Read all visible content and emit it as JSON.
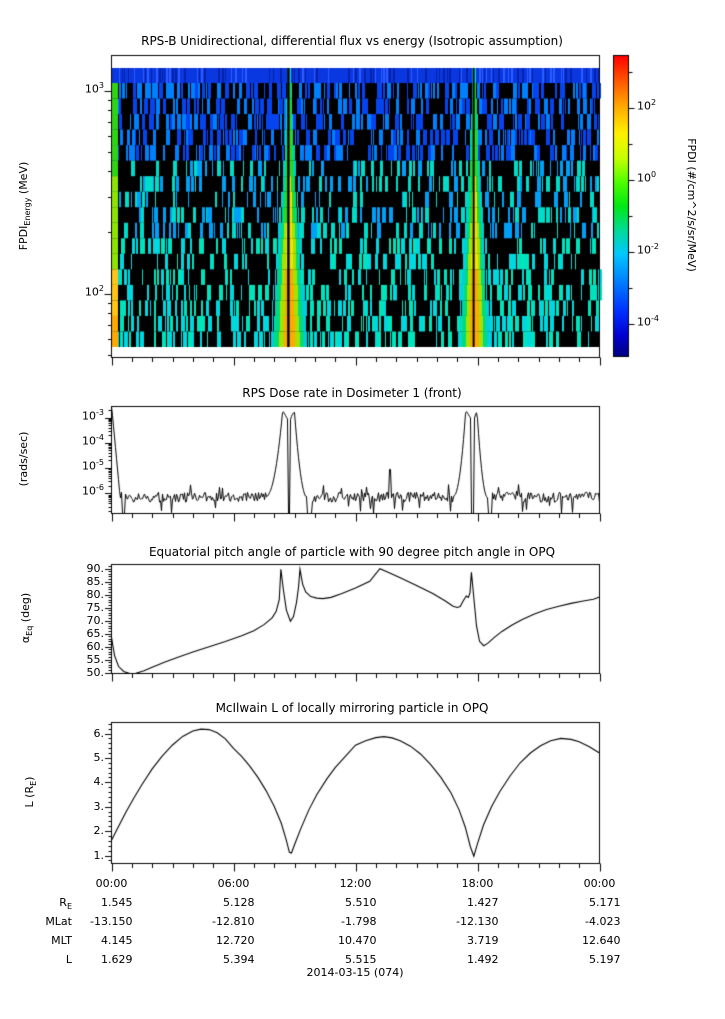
{
  "page": {
    "bg": "#ffffff",
    "date_label": "2014-03-15 (074)"
  },
  "panels": {
    "spectrogram": {
      "title": "RPS-B  Unidirectional, differential flux vs energy (Isotropic assumption)",
      "ylabel": {
        "main": "FPDI",
        "sub": "Energy",
        "rest": " (MeV)"
      },
      "yticks": [
        {
          "exp": "3",
          "v": 1000
        },
        {
          "exp": "2",
          "v": 100
        }
      ],
      "colorbar": {
        "label": "FPDI (#/cm^2/s/sr/MeV)",
        "ticks": [
          {
            "exp": "2",
            "v": 2
          },
          {
            "exp": "0",
            "v": 0
          },
          {
            "exp": "-2",
            "v": -2
          },
          {
            "exp": "-4",
            "v": -4
          }
        ],
        "minor_tick_exps": [
          3,
          1,
          -1,
          -3
        ],
        "gradient": [
          [
            0.0,
            "#ff0000"
          ],
          [
            0.08,
            "#ff5200"
          ],
          [
            0.17,
            "#ffaa00"
          ],
          [
            0.26,
            "#fff200"
          ],
          [
            0.34,
            "#c8ff00"
          ],
          [
            0.42,
            "#50ff00"
          ],
          [
            0.5,
            "#00e814"
          ],
          [
            0.58,
            "#00dc96"
          ],
          [
            0.66,
            "#00c8ff"
          ],
          [
            0.75,
            "#0080ff"
          ],
          [
            0.85,
            "#0030ff"
          ],
          [
            0.93,
            "#0000d2"
          ],
          [
            1.0,
            "#000082"
          ]
        ]
      }
    },
    "dose": {
      "title": "RPS  Dose rate in Dosimeter 1 (front)",
      "ylabel": "(rads/sec)",
      "yticks": [
        {
          "exp": "-3",
          "v": -3
        },
        {
          "exp": "-4",
          "v": -4
        },
        {
          "exp": "-5",
          "v": -5
        },
        {
          "exp": "-6",
          "v": -6
        }
      ]
    },
    "pitch": {
      "title": "Equatorial pitch angle of particle with 90 degree pitch angle in OPQ",
      "ylabel": {
        "main": "α",
        "sub": "Eq",
        "rest": " (deg)"
      },
      "yticks": [
        {
          "label": "90.",
          "v": 90
        },
        {
          "label": "85.",
          "v": 85
        },
        {
          "label": "80.",
          "v": 80
        },
        {
          "label": "75.",
          "v": 75
        },
        {
          "label": "70.",
          "v": 70
        },
        {
          "label": "65.",
          "v": 65
        },
        {
          "label": "60.",
          "v": 60
        },
        {
          "label": "55.",
          "v": 55
        },
        {
          "label": "50.",
          "v": 50
        }
      ]
    },
    "lshell": {
      "title": "McIlwain L of locally mirroring particle in OPQ",
      "ylabel": {
        "main": "L (R",
        "sub": "E",
        "rest": ")"
      },
      "yticks": [
        {
          "label": "6.",
          "v": 6
        },
        {
          "label": "5.",
          "v": 5
        },
        {
          "label": "4.",
          "v": 4
        },
        {
          "label": "3.",
          "v": 3
        },
        {
          "label": "2.",
          "v": 2
        },
        {
          "label": "1.",
          "v": 1
        }
      ]
    }
  },
  "xaxis": {
    "time_labels": [
      "00:00",
      "06:00",
      "12:00",
      "18:00",
      "00:00"
    ],
    "hours": [
      0,
      6,
      12,
      18,
      24
    ]
  },
  "table": {
    "row_labels": [
      {
        "main": "R",
        "sub": "E"
      },
      {
        "main": "MLat",
        "sub": ""
      },
      {
        "main": "MLT",
        "sub": ""
      },
      {
        "main": "L",
        "sub": ""
      }
    ],
    "columns": [
      "00:00",
      "06:00",
      "12:00",
      "18:00",
      "00:00"
    ],
    "rows": [
      [
        "1.545",
        "5.128",
        "5.510",
        "1.427",
        "5.171"
      ],
      [
        "-13.150",
        "-12.810",
        "-1.798",
        "-12.130",
        "-4.023"
      ],
      [
        "4.145",
        "12.720",
        "10.470",
        "3.719",
        "12.640"
      ],
      [
        "1.629",
        "5.394",
        "5.515",
        "1.492",
        "5.197"
      ]
    ]
  },
  "chart_data": [
    {
      "type": "heatmap",
      "title": "RPS-B  Unidirectional, differential flux vs energy (Isotropic assumption)",
      "xlabel": "UT on 2014-03-15, hours 0-24",
      "ylabel": "FPDI_Energy (MeV)",
      "y_scale": "log",
      "y_range_mev": [
        50,
        1500
      ],
      "color_label": "FPDI (#/cm^2/s/sr/MeV)",
      "color_scale": "log",
      "color_range": [
        1e-05,
        3000
      ],
      "n_energy_rows": 18,
      "top_row": {
        "color": "#0a38e0",
        "dark": "#0522a8",
        "light": "#2b5cff",
        "band_color": "#00d8e8"
      },
      "perigee_bands": [
        {
          "center_h": 8.75,
          "bottom_halfwidth_h": 0.82,
          "gap_h": [
            8.64,
            8.76
          ]
        },
        {
          "center_h": 17.85,
          "bottom_halfwidth_h": 0.7,
          "gap_h": [
            17.76,
            17.84
          ]
        }
      ],
      "left_band": {
        "start_h": 0.0,
        "width_h": 0.28,
        "top_color": "#2fd414",
        "mid_color": "#8ce400",
        "low_color": "#ffc414",
        "bottom_color": "#ffaa00"
      },
      "band_colors": {
        "core_low": "#ffaa00",
        "core_mid": "#f2e400",
        "core_high": "#40dc14",
        "inner_low": "#a8e000",
        "inner": "#2cd81c",
        "edge": "#00dc7c",
        "fringe": "#00ccdc"
      },
      "stripe_colors": {
        "high": [
          "#0644f0",
          "#0080ff"
        ],
        "mid": [
          "#00a0f8",
          "#00dcc8"
        ],
        "low": [
          "#00e4bc",
          "#00d8e0"
        ]
      },
      "stripe_density": {
        "high": 0.45,
        "mid": 0.33,
        "low": 0.3,
        "bottom": 0.38
      },
      "rng_seed": 20140315
    },
    {
      "type": "line",
      "title": "RPS  Dose rate in Dosimeter 1 (front)",
      "ylabel": "(rads/sec)",
      "y_scale": "log",
      "y_range": [
        1.6e-07,
        0.0028
      ],
      "x_range_hours": [
        0,
        24
      ],
      "baseline_log10": -6.15,
      "noise_amp_log10": 0.2,
      "start_spike": {
        "log10_at_t0": -2.5,
        "end_h": 0.45
      },
      "peaks": [
        {
          "rise_start": 7.55,
          "apex1": 8.42,
          "gap_start": 8.66,
          "gap_end": 8.78,
          "apex2_end": 9.0,
          "fall_end": 9.6,
          "apex_log10": -2.72
        },
        {
          "rise_start": 16.78,
          "apex1": 17.42,
          "gap_start": 17.7,
          "gap_end": 17.82,
          "apex2_end": 17.98,
          "fall_end": 18.48,
          "apex_log10": -2.72
        }
      ],
      "dropouts_h": [
        [
          0.5,
          0.64
        ],
        [
          9.62,
          9.85
        ],
        [
          18.52,
          18.72
        ]
      ],
      "spikes": [
        {
          "t": 12.55,
          "log10": -5.75
        },
        {
          "t": 13.7,
          "log10": -5.05
        }
      ],
      "rng_seed": 77
    },
    {
      "type": "line",
      "title": "Equatorial pitch angle of particle with 90 degree pitch angle in OPQ",
      "ylabel": "alpha_Eq (deg)",
      "y_scale": "linear",
      "y_range": [
        49.0,
        91.5
      ],
      "x_range_hours": [
        0,
        24
      ],
      "points": [
        [
          0,
          63.5
        ],
        [
          0.15,
          56.5
        ],
        [
          0.35,
          52.3
        ],
        [
          0.6,
          50.4
        ],
        [
          0.9,
          49.6
        ],
        [
          1.2,
          49.7
        ],
        [
          1.6,
          50.7
        ],
        [
          2,
          52
        ],
        [
          2.6,
          53.9
        ],
        [
          3.2,
          55.7
        ],
        [
          4,
          57.9
        ],
        [
          4.8,
          59.9
        ],
        [
          5.6,
          61.9
        ],
        [
          6.4,
          64.1
        ],
        [
          7,
          66.1
        ],
        [
          7.5,
          68.4
        ],
        [
          7.9,
          71
        ],
        [
          8.1,
          73.5
        ],
        [
          8.25,
          78
        ],
        [
          8.33,
          89.7
        ],
        [
          8.45,
          82
        ],
        [
          8.6,
          74
        ],
        [
          8.8,
          69.7
        ],
        [
          8.95,
          71.5
        ],
        [
          9.1,
          77
        ],
        [
          9.2,
          83
        ],
        [
          9.27,
          89.7
        ],
        [
          9.4,
          84
        ],
        [
          9.55,
          81
        ],
        [
          9.8,
          79.2
        ],
        [
          10.1,
          78.6
        ],
        [
          10.4,
          78.4
        ],
        [
          10.8,
          78.9
        ],
        [
          11.3,
          80.3
        ],
        [
          12,
          82.5
        ],
        [
          12.7,
          85.1
        ],
        [
          13.2,
          89.9
        ],
        [
          13.6,
          88.6
        ],
        [
          14.2,
          86.4
        ],
        [
          15,
          83.5
        ],
        [
          15.8,
          80.4
        ],
        [
          16.4,
          77.6
        ],
        [
          16.8,
          75.5
        ],
        [
          17,
          75
        ],
        [
          17.15,
          75.4
        ],
        [
          17.3,
          77.6
        ],
        [
          17.45,
          79.4
        ],
        [
          17.55,
          78.9
        ],
        [
          17.63,
          80.6
        ],
        [
          17.7,
          88.5
        ],
        [
          17.78,
          82
        ],
        [
          17.95,
          68
        ],
        [
          18.1,
          62
        ],
        [
          18.3,
          60.3
        ],
        [
          18.5,
          61.2
        ],
        [
          18.8,
          63.3
        ],
        [
          19.2,
          65.8
        ],
        [
          19.7,
          68.3
        ],
        [
          20.2,
          70.4
        ],
        [
          20.8,
          72.5
        ],
        [
          21.4,
          74.2
        ],
        [
          22,
          75.5
        ],
        [
          22.6,
          76.6
        ],
        [
          23.2,
          77.5
        ],
        [
          23.7,
          78.2
        ],
        [
          24,
          79
        ]
      ]
    },
    {
      "type": "line",
      "title": "McIlwain L of locally mirroring particle in OPQ",
      "ylabel": "L (R_E)",
      "y_scale": "linear",
      "y_range": [
        0.67,
        6.45
      ],
      "x_range_hours": [
        0,
        24
      ],
      "points": [
        [
          0,
          1.63
        ],
        [
          0.3,
          2.12
        ],
        [
          0.7,
          2.76
        ],
        [
          1.1,
          3.36
        ],
        [
          1.5,
          3.91
        ],
        [
          2,
          4.55
        ],
        [
          2.5,
          5.08
        ],
        [
          3,
          5.53
        ],
        [
          3.5,
          5.88
        ],
        [
          4,
          6.1
        ],
        [
          4.4,
          6.18
        ],
        [
          4.8,
          6.16
        ],
        [
          5.2,
          6.03
        ],
        [
          5.6,
          5.78
        ],
        [
          6,
          5.39
        ],
        [
          6.4,
          5.06
        ],
        [
          6.8,
          4.66
        ],
        [
          7.2,
          4.2
        ],
        [
          7.6,
          3.66
        ],
        [
          8,
          3.02
        ],
        [
          8.35,
          2.32
        ],
        [
          8.6,
          1.62
        ],
        [
          8.75,
          1.13
        ],
        [
          8.85,
          1.1
        ],
        [
          9,
          1.44
        ],
        [
          9.3,
          2.08
        ],
        [
          9.7,
          2.86
        ],
        [
          10.1,
          3.5
        ],
        [
          10.6,
          4.15
        ],
        [
          11,
          4.6
        ],
        [
          11.5,
          5.06
        ],
        [
          12,
          5.52
        ],
        [
          12.5,
          5.7
        ],
        [
          13,
          5.83
        ],
        [
          13.4,
          5.87
        ],
        [
          13.8,
          5.82
        ],
        [
          14.2,
          5.7
        ],
        [
          14.7,
          5.48
        ],
        [
          15.2,
          5.16
        ],
        [
          15.7,
          4.72
        ],
        [
          16.2,
          4.2
        ],
        [
          16.7,
          3.56
        ],
        [
          17.1,
          2.86
        ],
        [
          17.4,
          2.16
        ],
        [
          17.65,
          1.36
        ],
        [
          17.82,
          0.97
        ],
        [
          18,
          1.49
        ],
        [
          18.3,
          2.26
        ],
        [
          18.7,
          3.02
        ],
        [
          19.1,
          3.62
        ],
        [
          19.6,
          4.26
        ],
        [
          20.1,
          4.8
        ],
        [
          20.6,
          5.2
        ],
        [
          21.1,
          5.5
        ],
        [
          21.6,
          5.7
        ],
        [
          22.1,
          5.8
        ],
        [
          22.6,
          5.76
        ],
        [
          23,
          5.66
        ],
        [
          23.5,
          5.46
        ],
        [
          24,
          5.2
        ]
      ]
    }
  ]
}
